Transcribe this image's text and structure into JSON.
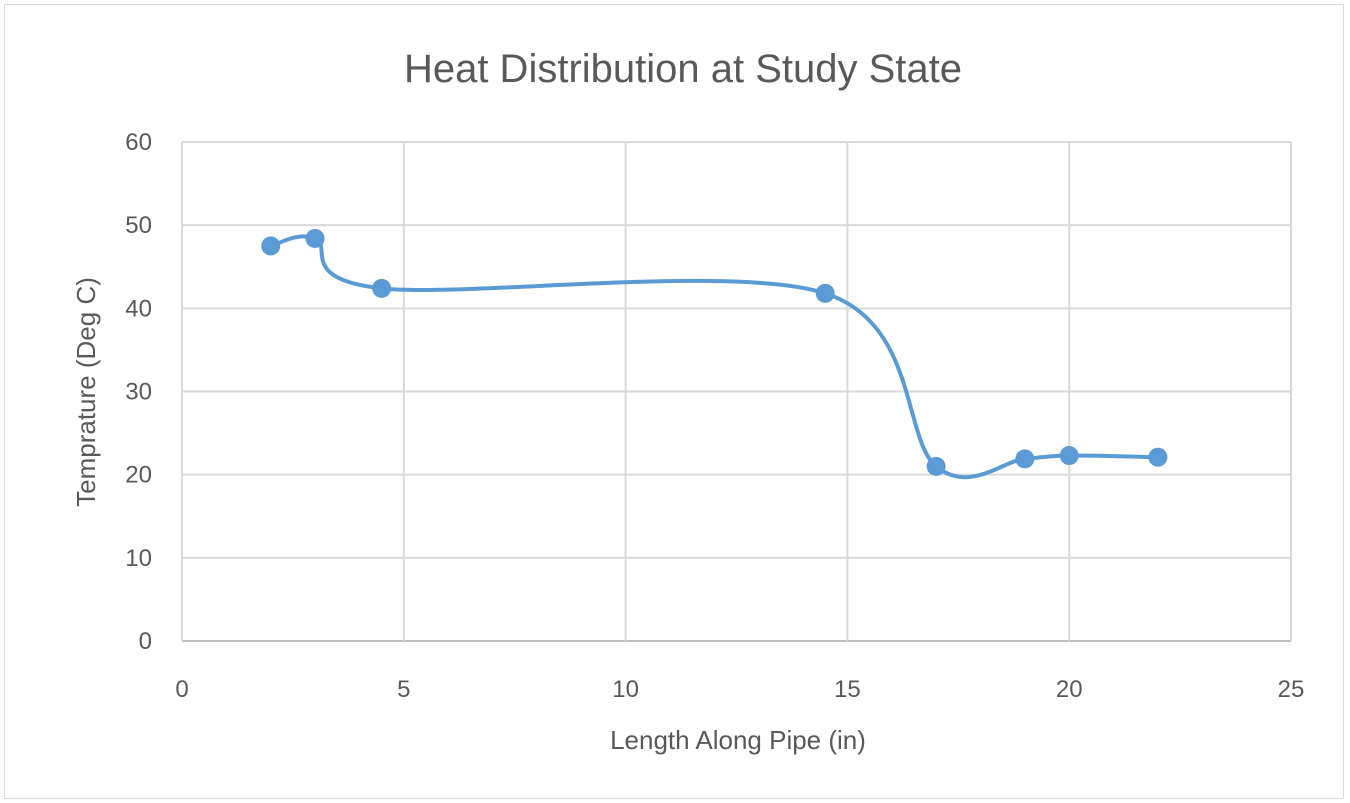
{
  "chart_data": {
    "type": "scatter",
    "title": "Heat Distribution at Study State",
    "xlabel": "Length Along Pipe (in)",
    "ylabel": "Temprature (Deg C)",
    "xlim": [
      0,
      25
    ],
    "ylim": [
      0,
      60
    ],
    "x_ticks": [
      0,
      5,
      10,
      15,
      20,
      25
    ],
    "y_ticks": [
      0,
      10,
      20,
      30,
      40,
      50,
      60
    ],
    "grid": true,
    "smooth_line": true,
    "series": [
      {
        "color": "#5b9bd5",
        "points": [
          {
            "x": 2,
            "y": 47.5
          },
          {
            "x": 3,
            "y": 48.4
          },
          {
            "x": 4.5,
            "y": 42.4
          },
          {
            "x": 14.5,
            "y": 41.8
          },
          {
            "x": 17,
            "y": 21.0
          },
          {
            "x": 19,
            "y": 21.9
          },
          {
            "x": 20,
            "y": 22.3
          },
          {
            "x": 22,
            "y": 22.1
          }
        ]
      }
    ]
  }
}
